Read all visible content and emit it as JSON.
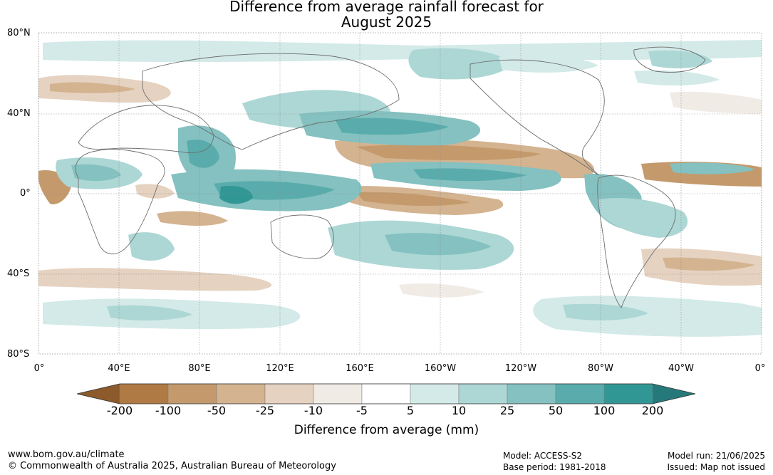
{
  "title": {
    "line1": "Difference from average rainfall forecast for",
    "line2": "August 2025"
  },
  "map": {
    "lat_labels": [
      "80°N",
      "40°N",
      "0°",
      "40°S",
      "80°S"
    ],
    "lon_labels": [
      "0°",
      "40°E",
      "80°E",
      "120°E",
      "160°E",
      "160°W",
      "120°W",
      "80°W",
      "40°W",
      "0°"
    ],
    "colors": {
      "coastline": "#6e6e6e",
      "gridline": "#8c8c8c"
    }
  },
  "colorbar": {
    "title": "Difference from average (mm)",
    "labels": [
      "-200",
      "-100",
      "-50",
      "-25",
      "-10",
      "-5",
      "5",
      "10",
      "25",
      "50",
      "100",
      "200"
    ],
    "colors": [
      "#8c5a2b",
      "#b07a45",
      "#c49a6c",
      "#d4b390",
      "#e5d2c0",
      "#f1ebe6",
      "#ffffff",
      "#d3eae8",
      "#acd7d5",
      "#84c1c0",
      "#5aacac",
      "#319795",
      "#26797a"
    ]
  },
  "footer": {
    "url": "www.bom.gov.au/climate",
    "copyright": "© Commonwealth of Australia 2025, Australian Bureau of Meteorology",
    "model": "Model: ACCESS-S2",
    "base_period": "Base period: 1981-2018",
    "model_run": "Model run: 21/06/2025",
    "issued": "Issued: Map not issued"
  }
}
